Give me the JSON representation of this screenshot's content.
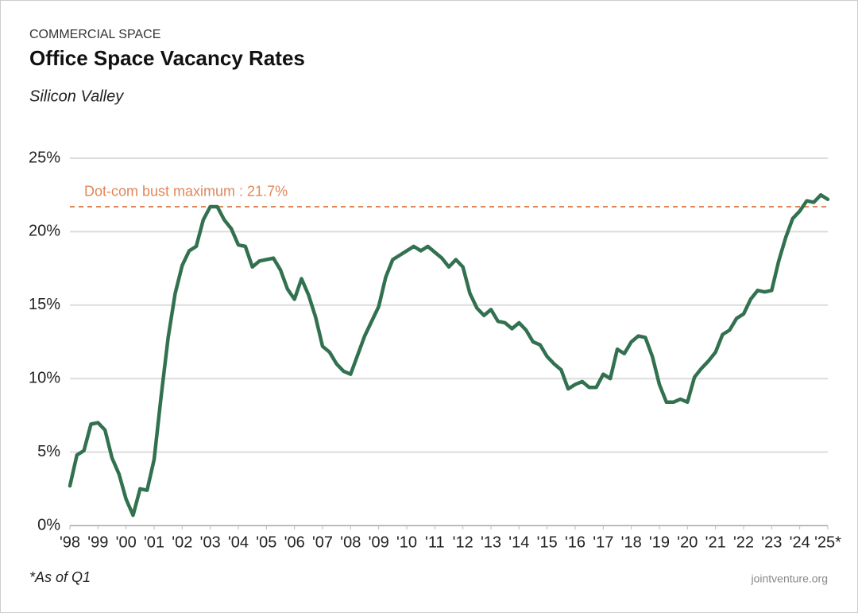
{
  "kicker": "COMMERCIAL SPACE",
  "chart_data": {
    "type": "line",
    "title": "Office Space Vacancy Rates",
    "subtitle": "Silicon Valley",
    "x": [
      1998,
      1998.25,
      1998.5,
      1998.75,
      1999,
      1999.25,
      1999.5,
      1999.75,
      2000,
      2000.25,
      2000.5,
      2000.75,
      2001,
      2001.25,
      2001.5,
      2001.75,
      2002,
      2002.25,
      2002.5,
      2002.75,
      2003,
      2003.25,
      2003.5,
      2003.75,
      2004,
      2004.25,
      2004.5,
      2004.75,
      2005,
      2005.25,
      2005.5,
      2005.75,
      2006,
      2006.25,
      2006.5,
      2006.75,
      2007,
      2007.25,
      2007.5,
      2007.75,
      2008,
      2008.25,
      2008.5,
      2008.75,
      2009,
      2009.25,
      2009.5,
      2009.75,
      2010,
      2010.25,
      2010.5,
      2010.75,
      2011,
      2011.25,
      2011.5,
      2011.75,
      2012,
      2012.25,
      2012.5,
      2012.75,
      2013,
      2013.25,
      2013.5,
      2013.75,
      2014,
      2014.25,
      2014.5,
      2014.75,
      2015,
      2015.25,
      2015.5,
      2015.75,
      2016,
      2016.25,
      2016.5,
      2016.75,
      2017,
      2017.25,
      2017.5,
      2017.75,
      2018,
      2018.25,
      2018.5,
      2018.75,
      2019,
      2019.25,
      2019.5,
      2019.75,
      2020,
      2020.25,
      2020.5,
      2020.75,
      2021,
      2021.25,
      2021.5,
      2021.75,
      2022,
      2022.25,
      2022.5,
      2022.75,
      2023,
      2023.25,
      2023.5,
      2023.75,
      2024,
      2024.25,
      2024.5,
      2024.75,
      2025
    ],
    "values": [
      2.7,
      4.8,
      5.1,
      6.9,
      7.0,
      6.5,
      4.6,
      3.5,
      1.8,
      0.7,
      2.5,
      2.4,
      4.5,
      8.8,
      12.8,
      15.8,
      17.7,
      18.7,
      19.0,
      20.8,
      21.7,
      21.7,
      20.8,
      20.2,
      19.1,
      19.0,
      17.6,
      18.0,
      18.1,
      18.2,
      17.4,
      16.1,
      15.4,
      16.8,
      15.7,
      14.2,
      12.2,
      11.8,
      11.0,
      10.5,
      10.3,
      11.6,
      12.9,
      13.9,
      14.9,
      16.9,
      18.1,
      18.4,
      18.7,
      19.0,
      18.7,
      19.0,
      18.6,
      18.2,
      17.6,
      18.1,
      17.6,
      15.8,
      14.8,
      14.3,
      14.7,
      13.9,
      13.8,
      13.4,
      13.8,
      13.3,
      12.5,
      12.3,
      11.5,
      11.0,
      10.6,
      9.3,
      9.6,
      9.8,
      9.4,
      9.4,
      10.3,
      10.0,
      12.0,
      11.7,
      12.5,
      12.9,
      12.8,
      11.5,
      9.6,
      8.4,
      8.4,
      8.6,
      8.4,
      10.1,
      10.7,
      11.2,
      11.8,
      13.0,
      13.3,
      14.1,
      14.4,
      15.4,
      16.0,
      15.9,
      16.0,
      18.0,
      19.6,
      20.9,
      21.4,
      22.1,
      22.0,
      22.5,
      22.2
    ],
    "color": "#32714f",
    "xlim": [
      1998,
      2025
    ],
    "xticks": [
      {
        "value": 1998,
        "label": "'98"
      },
      {
        "value": 1999,
        "label": "'99"
      },
      {
        "value": 2000,
        "label": "'00"
      },
      {
        "value": 2001,
        "label": "'01"
      },
      {
        "value": 2002,
        "label": "'02"
      },
      {
        "value": 2003,
        "label": "'03"
      },
      {
        "value": 2004,
        "label": "'04"
      },
      {
        "value": 2005,
        "label": "'05"
      },
      {
        "value": 2006,
        "label": "'06"
      },
      {
        "value": 2007,
        "label": "'07"
      },
      {
        "value": 2008,
        "label": "'08"
      },
      {
        "value": 2009,
        "label": "'09"
      },
      {
        "value": 2010,
        "label": "'10"
      },
      {
        "value": 2011,
        "label": "'11"
      },
      {
        "value": 2012,
        "label": "'12"
      },
      {
        "value": 2013,
        "label": "'13"
      },
      {
        "value": 2014,
        "label": "'14"
      },
      {
        "value": 2015,
        "label": "'15"
      },
      {
        "value": 2016,
        "label": "'16"
      },
      {
        "value": 2017,
        "label": "'17"
      },
      {
        "value": 2018,
        "label": "'18"
      },
      {
        "value": 2019,
        "label": "'19"
      },
      {
        "value": 2020,
        "label": "'20"
      },
      {
        "value": 2021,
        "label": "'21"
      },
      {
        "value": 2022,
        "label": "'22"
      },
      {
        "value": 2023,
        "label": "'23"
      },
      {
        "value": 2024,
        "label": "'24"
      },
      {
        "value": 2025,
        "label": "'25*"
      }
    ],
    "ylim": [
      0,
      25
    ],
    "yticks": [
      {
        "value": 0,
        "label": "0%"
      },
      {
        "value": 5,
        "label": "5%"
      },
      {
        "value": 10,
        "label": "10%"
      },
      {
        "value": 15,
        "label": "15%"
      },
      {
        "value": 20,
        "label": "20%"
      },
      {
        "value": 25,
        "label": "25%"
      }
    ],
    "grid": true,
    "reference_line": {
      "value": 21.7,
      "label": "Dot-com bust maximum : 21.7%",
      "color": "#e0875a"
    },
    "footnote": "*As of Q1",
    "source": "jointventure.org"
  }
}
